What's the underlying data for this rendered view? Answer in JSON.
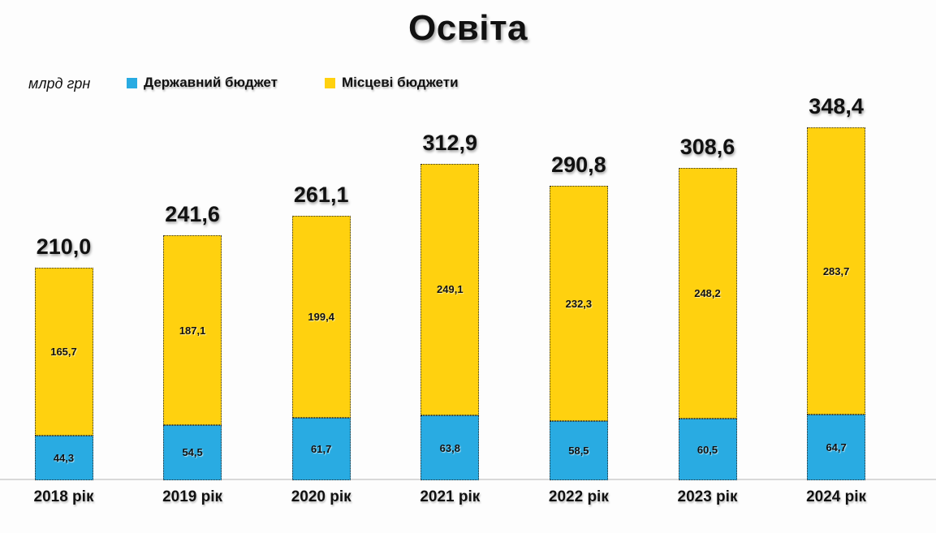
{
  "title": "Освіта",
  "unit_label": "млрд грн",
  "colors": {
    "state_budget": "#29abe2",
    "local_budgets": "#ffd10f",
    "baseline": "#d9d9d9",
    "text": "#111111",
    "background": "#fdfdfd"
  },
  "chart_data": {
    "type": "bar",
    "stacked": true,
    "title": "Освіта",
    "unit": "млрд грн",
    "legend_position": "top",
    "axes_visible": false,
    "grid": false,
    "ylim": [
      0,
      370
    ],
    "categories": [
      "2018 рік",
      "2019 рік",
      "2020 рік",
      "2021 рік",
      "2022 рік",
      "2023 рік",
      "2024 рік"
    ],
    "series": [
      {
        "name": "Державний бюджет",
        "color": "#29abe2",
        "values": [
          44.3,
          54.5,
          61.7,
          63.8,
          58.5,
          60.5,
          64.7
        ],
        "labels": [
          "44,3",
          "54,5",
          "61,7",
          "63,8",
          "58,5",
          "60,5",
          "64,7"
        ]
      },
      {
        "name": "Місцеві бюджети",
        "color": "#ffd10f",
        "values": [
          165.7,
          187.1,
          199.4,
          249.1,
          232.3,
          248.2,
          283.7
        ],
        "labels": [
          "165,7",
          "187,1",
          "199,4",
          "249,1",
          "232,3",
          "248,2",
          "283,7"
        ]
      }
    ],
    "totals": [
      210.0,
      241.6,
      261.1,
      312.9,
      290.8,
      308.6,
      348.4
    ],
    "total_labels": [
      "210,0",
      "241,6",
      "261,1",
      "312,9",
      "290,8",
      "308,6",
      "348,4"
    ]
  }
}
